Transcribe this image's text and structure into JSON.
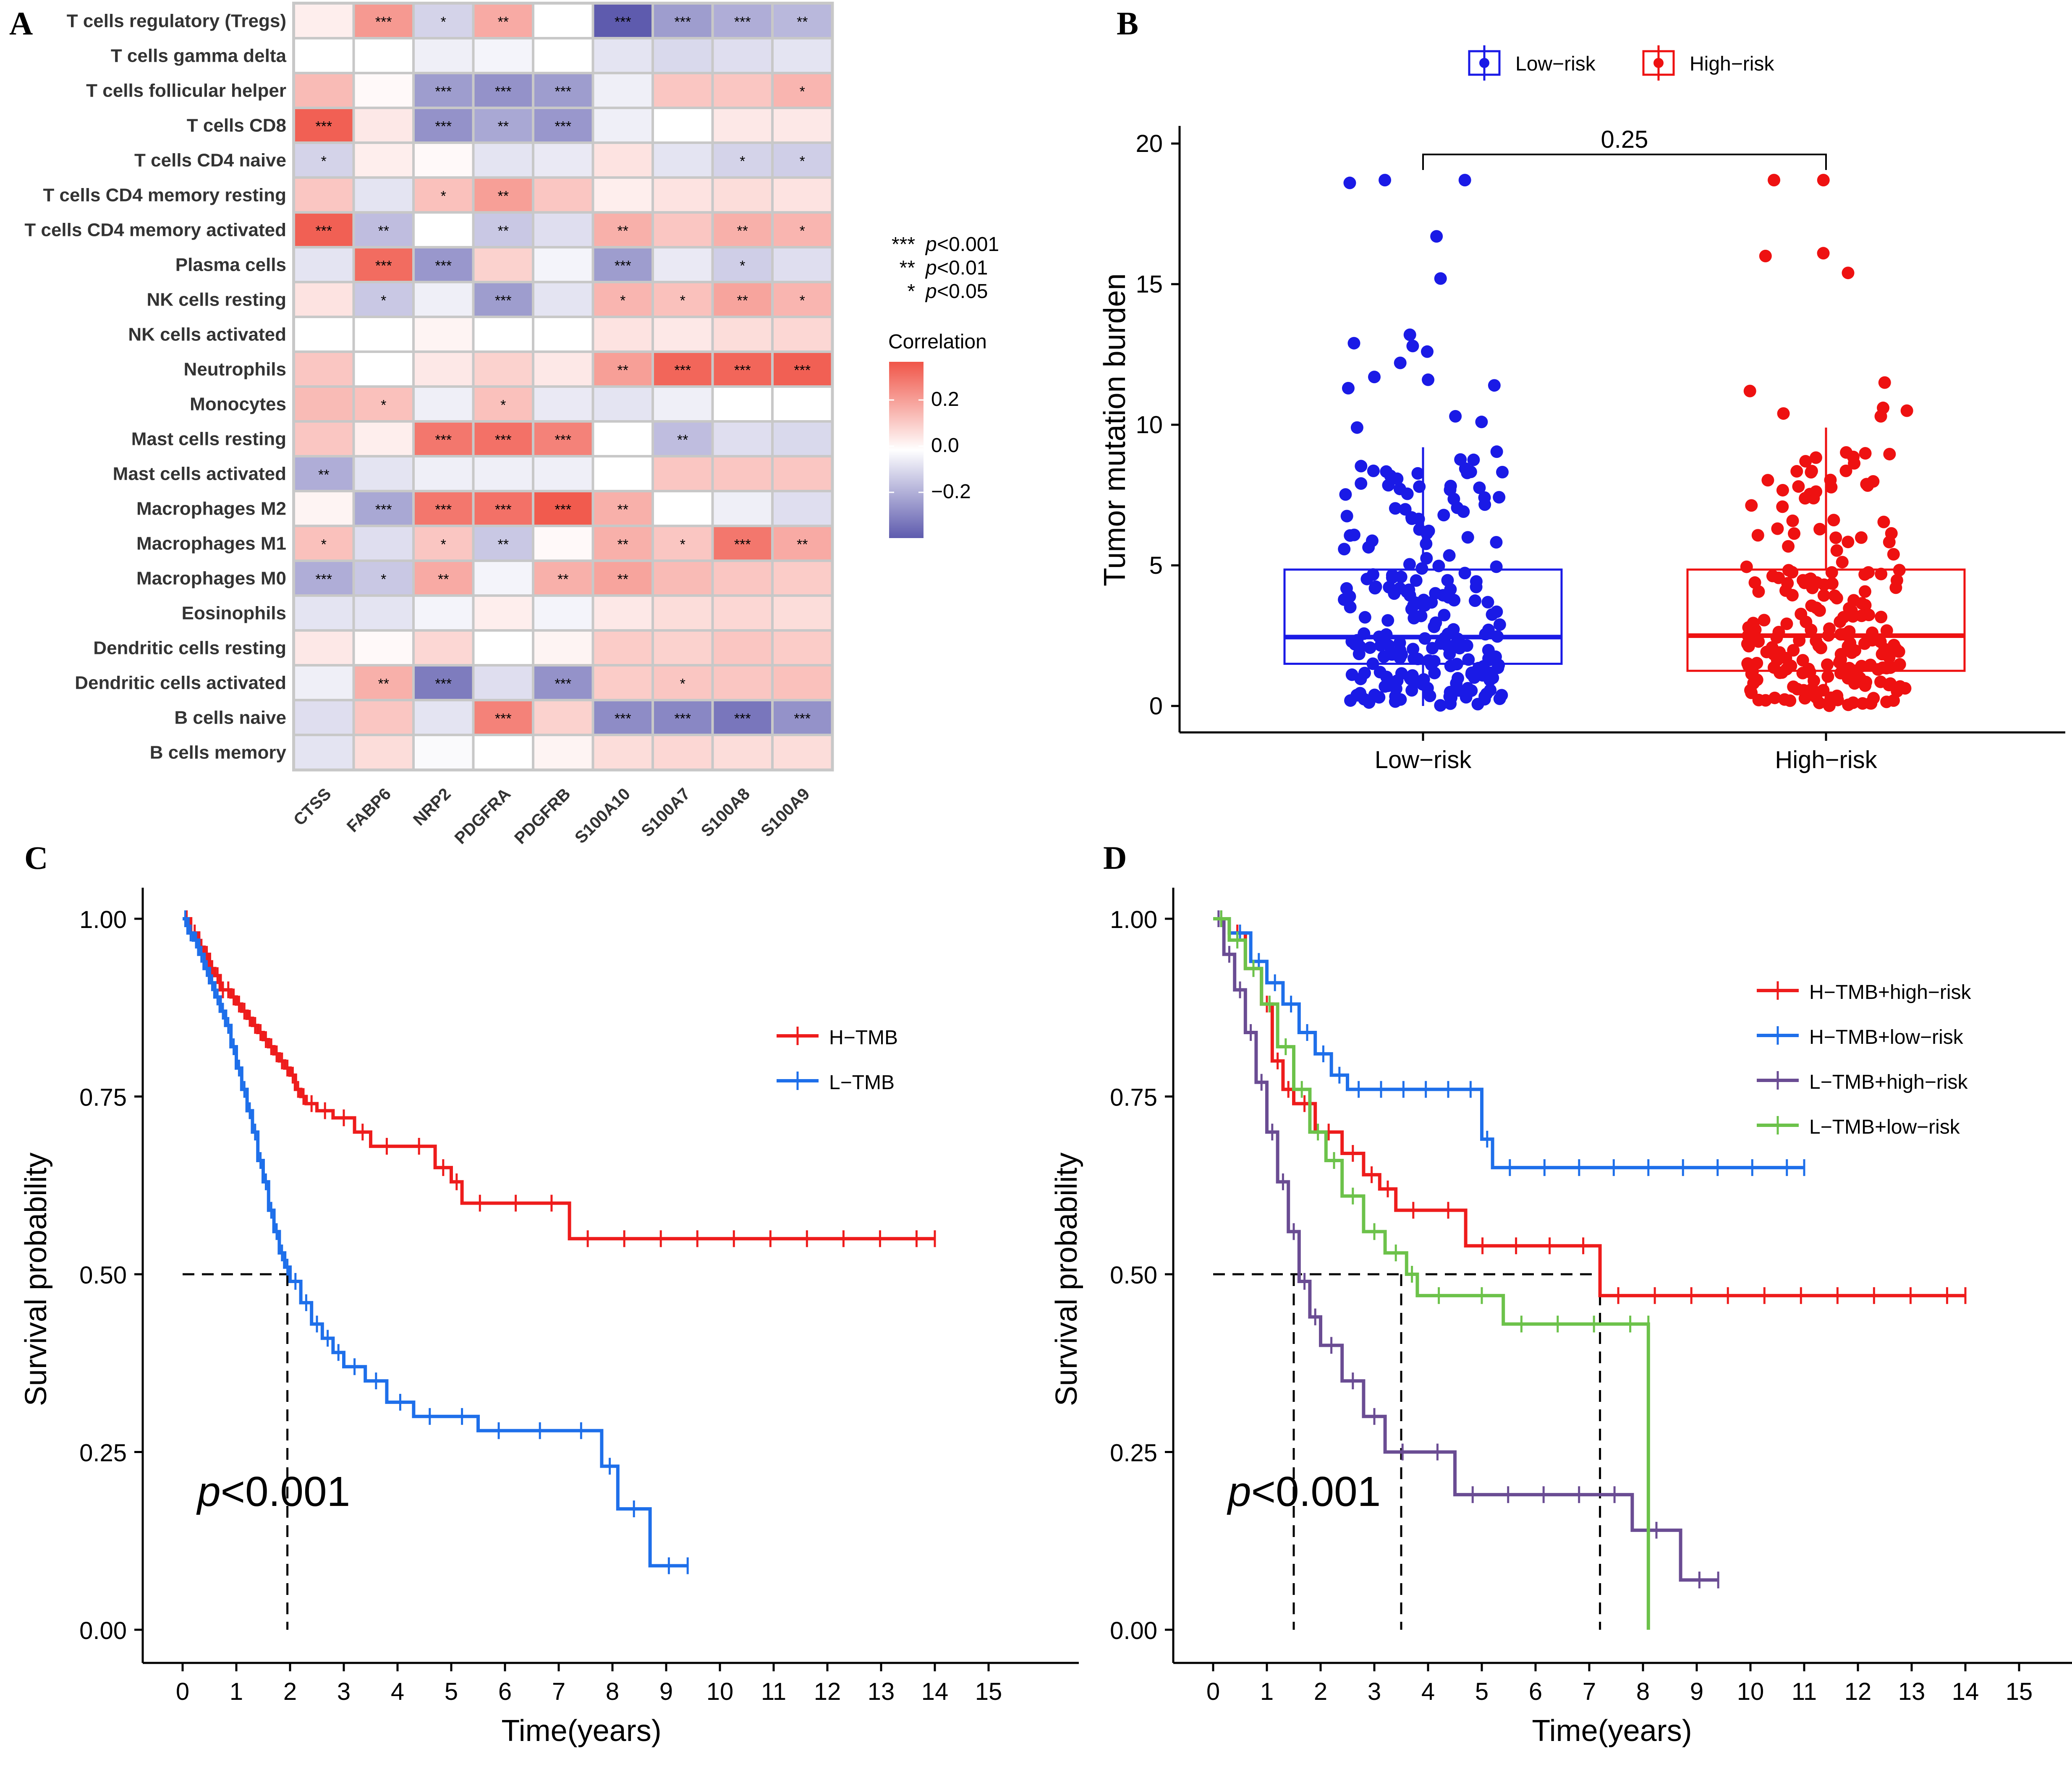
{
  "panels": {
    "a": "A",
    "b": "B",
    "c": "C",
    "d": "D"
  },
  "chart_data": [
    {
      "type": "heatmap",
      "panel": "A",
      "rows": [
        "T cells regulatory (Tregs)",
        "T cells gamma delta",
        "T cells follicular helper",
        "T cells CD8",
        "T cells CD4 naive",
        "T cells CD4 memory resting",
        "T cells CD4 memory activated",
        "Plasma cells",
        "NK cells resting",
        "NK cells activated",
        "Neutrophils",
        "Monocytes",
        "Mast cells resting",
        "Mast cells activated",
        "Macrophages M2",
        "Macrophages M1",
        "Macrophages M0",
        "Eosinophils",
        "Dendritic cells resting",
        "Dendritic cells activated",
        "B cells naive",
        "B cells memory"
      ],
      "columns": [
        "CTSS",
        "FABP6",
        "NRP2",
        "PDGFRA",
        "PDGFRB",
        "S100A10",
        "S100A7",
        "S100A8",
        "S100A9"
      ],
      "values": [
        [
          0.03,
          0.18,
          -0.08,
          0.15,
          0.0,
          -0.3,
          -0.18,
          -0.15,
          -0.13
        ],
        [
          0.0,
          0.0,
          -0.03,
          -0.02,
          0.0,
          -0.05,
          -0.07,
          -0.06,
          -0.05
        ],
        [
          0.12,
          0.01,
          -0.18,
          -0.2,
          -0.18,
          -0.03,
          0.1,
          0.1,
          0.13
        ],
        [
          0.28,
          0.04,
          -0.2,
          -0.16,
          -0.19,
          -0.03,
          0.0,
          0.04,
          0.04
        ],
        [
          -0.08,
          0.03,
          0.01,
          -0.05,
          -0.04,
          0.05,
          -0.05,
          -0.08,
          -0.09
        ],
        [
          0.1,
          -0.05,
          0.11,
          0.17,
          0.1,
          0.03,
          0.05,
          0.06,
          0.05
        ],
        [
          0.28,
          -0.12,
          0.0,
          -0.1,
          -0.06,
          0.14,
          0.1,
          0.14,
          0.13
        ],
        [
          -0.05,
          0.26,
          -0.19,
          0.08,
          -0.02,
          -0.18,
          -0.04,
          -0.09,
          -0.06
        ],
        [
          0.05,
          -0.1,
          -0.03,
          -0.18,
          -0.05,
          0.13,
          0.11,
          0.16,
          0.13
        ],
        [
          0.0,
          0.0,
          0.02,
          0.0,
          0.0,
          0.05,
          0.04,
          0.06,
          0.07
        ],
        [
          0.1,
          0.0,
          0.04,
          0.08,
          0.04,
          0.17,
          0.27,
          0.27,
          0.28
        ],
        [
          0.12,
          0.11,
          -0.03,
          0.11,
          -0.04,
          -0.05,
          -0.03,
          0.0,
          0.0
        ],
        [
          0.1,
          0.03,
          0.24,
          0.25,
          0.22,
          0.0,
          -0.12,
          -0.06,
          -0.07
        ],
        [
          -0.15,
          -0.05,
          -0.03,
          -0.03,
          -0.03,
          0.0,
          0.1,
          0.1,
          0.1
        ],
        [
          0.02,
          -0.16,
          0.24,
          0.25,
          0.29,
          0.14,
          0.0,
          -0.03,
          -0.06
        ],
        [
          0.11,
          -0.06,
          0.1,
          -0.1,
          0.01,
          0.14,
          0.1,
          0.24,
          0.15
        ],
        [
          -0.15,
          -0.1,
          0.15,
          -0.02,
          0.14,
          0.16,
          0.12,
          0.1,
          0.09
        ],
        [
          -0.05,
          -0.05,
          -0.02,
          0.03,
          -0.02,
          0.04,
          0.06,
          0.07,
          0.06
        ],
        [
          0.04,
          0.01,
          0.07,
          0.0,
          0.02,
          0.09,
          0.08,
          0.1,
          0.09
        ],
        [
          -0.03,
          0.14,
          -0.24,
          -0.06,
          -0.2,
          0.09,
          0.1,
          0.1,
          0.11
        ],
        [
          -0.06,
          0.1,
          -0.05,
          0.22,
          0.08,
          -0.21,
          -0.22,
          -0.25,
          -0.2
        ],
        [
          -0.05,
          0.06,
          -0.01,
          0.0,
          0.02,
          0.06,
          0.07,
          0.06,
          0.06
        ]
      ],
      "significance": [
        [
          "",
          "***",
          "*",
          "**",
          "",
          "***",
          "***",
          "***",
          "**"
        ],
        [
          "",
          "",
          "",
          "",
          "",
          "",
          "",
          "",
          ""
        ],
        [
          "",
          "",
          "***",
          "***",
          "***",
          "",
          "",
          "",
          "*"
        ],
        [
          "***",
          "",
          "***",
          "**",
          "***",
          "",
          "",
          "",
          ""
        ],
        [
          "*",
          "",
          "",
          "",
          "",
          "",
          "",
          "*",
          "*"
        ],
        [
          "",
          "",
          "*",
          "**",
          "",
          "",
          "",
          "",
          ""
        ],
        [
          "***",
          "**",
          "",
          "**",
          "",
          "**",
          "",
          "**",
          "*"
        ],
        [
          "",
          "***",
          "***",
          "",
          "",
          "***",
          "",
          "*",
          ""
        ],
        [
          "",
          "*",
          "",
          "***",
          "",
          "*",
          "*",
          "**",
          "*"
        ],
        [
          "",
          "",
          "",
          "",
          "",
          "",
          "",
          "",
          ""
        ],
        [
          "",
          "",
          "",
          "",
          "",
          "**",
          "***",
          "***",
          "***"
        ],
        [
          "",
          "*",
          "",
          "*",
          "",
          "",
          "",
          "",
          ""
        ],
        [
          "",
          "",
          "***",
          "***",
          "***",
          "",
          "**",
          "",
          ""
        ],
        [
          "**",
          "",
          "",
          "",
          "",
          "",
          "",
          "",
          ""
        ],
        [
          "",
          "***",
          "***",
          "***",
          "***",
          "**",
          "",
          "",
          ""
        ],
        [
          "*",
          "",
          "*",
          "**",
          "",
          "**",
          "*",
          "***",
          "**"
        ],
        [
          "***",
          "*",
          "**",
          "",
          "**",
          "**",
          "",
          "",
          ""
        ],
        [
          "",
          "",
          "",
          "",
          "",
          "",
          "",
          "",
          ""
        ],
        [
          "",
          "",
          "",
          "",
          "",
          "",
          "",
          "",
          ""
        ],
        [
          "",
          "**",
          "***",
          "",
          "***",
          "",
          "*",
          "",
          ""
        ],
        [
          "",
          "",
          "",
          "***",
          "",
          "***",
          "***",
          "***",
          "***"
        ],
        [
          "",
          "",
          "",
          "",
          "",
          "",
          "",
          "",
          ""
        ]
      ],
      "significance_legend": [
        {
          "stars": "***",
          "label": "p<0.001"
        },
        {
          "stars": "**",
          "label": "p<0.01"
        },
        {
          "stars": "*",
          "label": "p<0.05"
        }
      ],
      "colorbar": {
        "title": "Correlation",
        "ticks": [
          "0.2",
          "0.0",
          "−0.2"
        ],
        "range": [
          -0.3,
          0.3
        ],
        "low_color": "#5E5BAE",
        "mid_color": "#FFFFFF",
        "high_color": "#F05548"
      }
    },
    {
      "type": "box",
      "panel": "B",
      "ylabel": "Tumor mutation burden",
      "ylim": [
        0,
        20
      ],
      "yticks": [
        "0",
        "5",
        "10",
        "15",
        "20"
      ],
      "categories": [
        "Low−risk",
        "High−risk"
      ],
      "legend": [
        "Low−risk",
        "High−risk"
      ],
      "colors": [
        "#1A1AE6",
        "#EE1111"
      ],
      "boxes": [
        {
          "q1": 1.5,
          "median": 2.45,
          "q3": 4.85,
          "whisker_low": 0.0,
          "whisker_high": 9.2
        },
        {
          "q1": 1.25,
          "median": 2.5,
          "q3": 4.85,
          "whisker_low": 0.0,
          "whisker_high": 9.9
        }
      ],
      "outliers": [
        [
          18.7,
          18.6,
          18.7,
          16.7,
          15.2,
          13.2,
          12.9,
          12.6,
          12.8,
          12.2,
          11.7,
          11.6,
          11.4,
          11.3,
          10.3,
          10.1,
          9.9
        ],
        [
          18.7,
          18.7,
          16.1,
          15.4,
          16.0,
          11.5,
          11.2,
          10.6,
          10.5,
          10.4,
          10.3
        ]
      ],
      "annotation": "0.25"
    },
    {
      "type": "line",
      "panel": "C",
      "xlabel": "Time(years)",
      "ylabel": "Survival probability",
      "xlim": [
        -0.8,
        15.5
      ],
      "ylim": [
        -0.02,
        1.02
      ],
      "xticks": [
        "0",
        "1",
        "2",
        "3",
        "4",
        "5",
        "6",
        "7",
        "8",
        "9",
        "10",
        "11",
        "12",
        "13",
        "14",
        "15"
      ],
      "yticks": [
        "0.00",
        "0.25",
        "0.50",
        "0.75",
        "1.00"
      ],
      "pvalue": {
        "italic": "p",
        "rest": "<0.001"
      },
      "median_line": {
        "y": 0.5,
        "x": [
          1.95
        ]
      },
      "series": [
        {
          "name": "H−TMB",
          "color": "#EE1C1C",
          "x": [
            0,
            0.15,
            0.3,
            0.4,
            0.5,
            0.6,
            0.7,
            0.8,
            0.9,
            1.0,
            1.1,
            1.2,
            1.3,
            1.4,
            1.5,
            1.6,
            1.7,
            1.8,
            1.9,
            2.0,
            2.1,
            2.2,
            2.3,
            2.5,
            2.8,
            3.2,
            3.5,
            4.7,
            5.0,
            5.2,
            7.2,
            14.0
          ],
          "y": [
            1.0,
            0.98,
            0.96,
            0.95,
            0.93,
            0.92,
            0.9,
            0.9,
            0.89,
            0.88,
            0.87,
            0.86,
            0.85,
            0.84,
            0.83,
            0.82,
            0.81,
            0.8,
            0.79,
            0.78,
            0.76,
            0.75,
            0.74,
            0.73,
            0.72,
            0.7,
            0.68,
            0.65,
            0.63,
            0.6,
            0.55,
            0.55
          ]
        },
        {
          "name": "L−TMB",
          "color": "#1E6FEA",
          "x": [
            0,
            0.1,
            0.2,
            0.3,
            0.4,
            0.5,
            0.6,
            0.7,
            0.8,
            0.9,
            1.0,
            1.1,
            1.2,
            1.3,
            1.4,
            1.5,
            1.6,
            1.7,
            1.8,
            1.9,
            2.0,
            2.2,
            2.4,
            2.6,
            2.8,
            3.0,
            3.4,
            3.8,
            4.3,
            5.5,
            7.8,
            8.1,
            8.7,
            9.4
          ],
          "y": [
            1.0,
            0.98,
            0.97,
            0.95,
            0.93,
            0.91,
            0.89,
            0.87,
            0.85,
            0.82,
            0.79,
            0.76,
            0.73,
            0.7,
            0.66,
            0.63,
            0.59,
            0.56,
            0.53,
            0.51,
            0.49,
            0.46,
            0.43,
            0.41,
            0.39,
            0.37,
            0.35,
            0.32,
            0.3,
            0.28,
            0.23,
            0.17,
            0.09,
            0.09
          ]
        }
      ]
    },
    {
      "type": "line",
      "panel": "D",
      "xlabel": "Time(years)",
      "ylabel": "Survival probability",
      "xlim": [
        -0.8,
        15.5
      ],
      "ylim": [
        -0.02,
        1.02
      ],
      "xticks": [
        "0",
        "1",
        "2",
        "3",
        "4",
        "5",
        "6",
        "7",
        "8",
        "9",
        "10",
        "11",
        "12",
        "13",
        "14",
        "15"
      ],
      "yticks": [
        "0.00",
        "0.25",
        "0.50",
        "0.75",
        "1.00"
      ],
      "pvalue": {
        "italic": "p",
        "rest": "<0.001"
      },
      "median_line": {
        "y": 0.5,
        "x": [
          1.5,
          3.5,
          7.2
        ]
      },
      "series": [
        {
          "name": "H−TMB+high−risk",
          "color": "#EE1C1C",
          "x": [
            0,
            0.3,
            0.6,
            0.9,
            1.1,
            1.3,
            1.5,
            1.9,
            2.4,
            2.8,
            3.1,
            3.4,
            4.7,
            7.2,
            14.0
          ],
          "y": [
            1.0,
            0.98,
            0.93,
            0.88,
            0.8,
            0.76,
            0.74,
            0.7,
            0.67,
            0.64,
            0.62,
            0.59,
            0.54,
            0.47,
            0.47
          ]
        },
        {
          "name": "H−TMB+low−risk",
          "color": "#1E6FEA",
          "x": [
            0,
            0.3,
            0.7,
            1.0,
            1.3,
            1.6,
            1.9,
            2.2,
            2.5,
            5.0,
            5.2,
            11.0
          ],
          "y": [
            1.0,
            0.98,
            0.94,
            0.91,
            0.88,
            0.84,
            0.81,
            0.78,
            0.76,
            0.69,
            0.65,
            0.65
          ]
        },
        {
          "name": "L−TMB+high−risk",
          "color": "#6A4C93",
          "x": [
            0,
            0.2,
            0.4,
            0.6,
            0.8,
            1.0,
            1.2,
            1.4,
            1.6,
            1.8,
            2.0,
            2.4,
            2.8,
            3.2,
            4.5,
            7.8,
            8.7,
            9.4
          ],
          "y": [
            1.0,
            0.95,
            0.9,
            0.84,
            0.77,
            0.7,
            0.63,
            0.56,
            0.49,
            0.44,
            0.4,
            0.35,
            0.3,
            0.25,
            0.19,
            0.14,
            0.07,
            0.07
          ]
        },
        {
          "name": "L−TMB+low−risk",
          "color": "#6CC24A",
          "x": [
            0,
            0.3,
            0.6,
            0.9,
            1.2,
            1.5,
            1.8,
            2.1,
            2.4,
            2.8,
            3.2,
            3.6,
            3.8,
            5.4,
            8.1,
            8.1
          ],
          "y": [
            1.0,
            0.97,
            0.93,
            0.88,
            0.82,
            0.76,
            0.7,
            0.66,
            0.61,
            0.56,
            0.53,
            0.5,
            0.47,
            0.43,
            0.43,
            0.0
          ]
        }
      ]
    }
  ]
}
